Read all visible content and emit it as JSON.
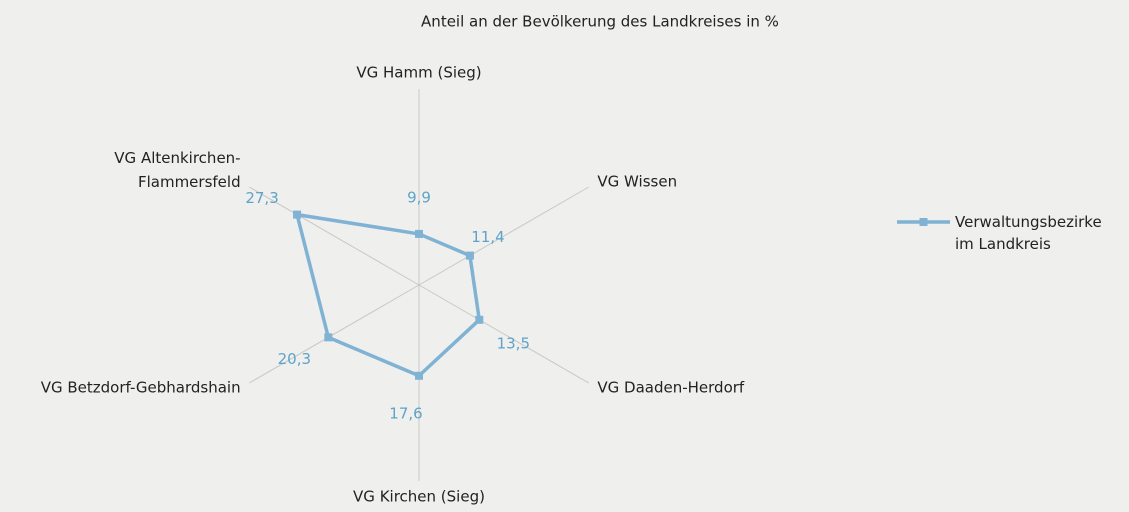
{
  "chart_data": {
    "type": "radar",
    "title": "Anteil an der Bevölkerung des Landkreises in %",
    "categories": [
      "VG Hamm (Sieg)",
      "VG Wissen",
      "VG Daaden-Herdorf",
      "VG Kirchen (Sieg)",
      "VG Betzdorf-Gebhardshain",
      "VG Altenkirchen-Flammersfeld"
    ],
    "series": [
      {
        "name": "Verwaltungsbezirke im Landkreis",
        "color": "#7fb2d3",
        "values": [
          9.9,
          11.4,
          13.5,
          17.6,
          20.3,
          27.3
        ],
        "value_labels": [
          "9,9",
          "11,4",
          "13,5",
          "17,6",
          "20,3",
          "27,3"
        ]
      }
    ],
    "ylim": [
      0,
      38
    ],
    "legend": "right"
  }
}
